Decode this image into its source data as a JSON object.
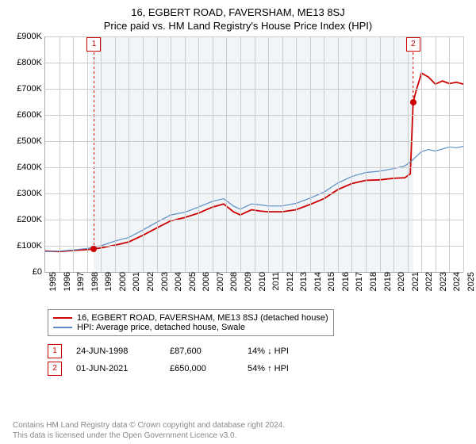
{
  "title_line1": "16, EGBERT ROAD, FAVERSHAM, ME13 8SJ",
  "title_line2": "Price paid vs. HM Land Registry's House Price Index (HPI)",
  "chart": {
    "type": "line",
    "x_start_year": 1995,
    "x_end_year": 2025,
    "ylim": [
      0,
      900000
    ],
    "ytick_step": 100000,
    "y_labels": [
      "£0",
      "£100K",
      "£200K",
      "£300K",
      "£400K",
      "£500K",
      "£600K",
      "£700K",
      "£800K",
      "£900K"
    ],
    "x_labels": [
      "1995",
      "1996",
      "1997",
      "1998",
      "1999",
      "2000",
      "2001",
      "2002",
      "2003",
      "2004",
      "2005",
      "2006",
      "2007",
      "2008",
      "2009",
      "2010",
      "2011",
      "2012",
      "2013",
      "2014",
      "2015",
      "2016",
      "2017",
      "2018",
      "2019",
      "2020",
      "2021",
      "2022",
      "2023",
      "2024",
      "2025"
    ],
    "band_start_year": 1998.5,
    "band_end_year": 2021.4,
    "background_color": "#ffffff",
    "band_color": "#f2f5f7",
    "grid_color": "#cccccc",
    "axis_fontsize": 11,
    "title_fontsize": 13,
    "series": [
      {
        "name": "red",
        "color": "#cc0000",
        "width": 1.8,
        "data": [
          [
            1995,
            80
          ],
          [
            1996,
            78
          ],
          [
            1997,
            82
          ],
          [
            1998,
            85
          ],
          [
            1998.5,
            88
          ],
          [
            1999,
            92
          ],
          [
            2000,
            102
          ],
          [
            2001,
            115
          ],
          [
            2002,
            140
          ],
          [
            2003,
            168
          ],
          [
            2004,
            195
          ],
          [
            2005,
            208
          ],
          [
            2006,
            225
          ],
          [
            2007,
            248
          ],
          [
            2007.8,
            260
          ],
          [
            2008.5,
            230
          ],
          [
            2009,
            218
          ],
          [
            2009.8,
            238
          ],
          [
            2010.5,
            232
          ],
          [
            2011,
            230
          ],
          [
            2012,
            230
          ],
          [
            2013,
            238
          ],
          [
            2014,
            258
          ],
          [
            2015,
            280
          ],
          [
            2016,
            315
          ],
          [
            2017,
            338
          ],
          [
            2018,
            350
          ],
          [
            2019,
            352
          ],
          [
            2020,
            358
          ],
          [
            2020.8,
            360
          ],
          [
            2021.2,
            375
          ],
          [
            2021.4,
            650
          ],
          [
            2021.6,
            690
          ],
          [
            2022,
            760
          ],
          [
            2022.5,
            745
          ],
          [
            2023,
            718
          ],
          [
            2023.5,
            730
          ],
          [
            2024,
            720
          ],
          [
            2024.5,
            725
          ],
          [
            2025,
            718
          ]
        ]
      },
      {
        "name": "blue",
        "color": "#5a8fc8",
        "width": 1.2,
        "data": [
          [
            1995,
            78
          ],
          [
            1996,
            80
          ],
          [
            1997,
            84
          ],
          [
            1998,
            90
          ],
          [
            1999,
            100
          ],
          [
            2000,
            118
          ],
          [
            2001,
            132
          ],
          [
            2002,
            160
          ],
          [
            2003,
            190
          ],
          [
            2004,
            218
          ],
          [
            2005,
            228
          ],
          [
            2006,
            248
          ],
          [
            2007,
            270
          ],
          [
            2007.8,
            280
          ],
          [
            2008.5,
            252
          ],
          [
            2009,
            240
          ],
          [
            2009.8,
            260
          ],
          [
            2010.5,
            256
          ],
          [
            2011,
            252
          ],
          [
            2012,
            252
          ],
          [
            2013,
            262
          ],
          [
            2014,
            282
          ],
          [
            2015,
            305
          ],
          [
            2016,
            340
          ],
          [
            2017,
            365
          ],
          [
            2018,
            380
          ],
          [
            2019,
            385
          ],
          [
            2020,
            395
          ],
          [
            2020.8,
            405
          ],
          [
            2021.2,
            420
          ],
          [
            2021.4,
            430
          ],
          [
            2022,
            460
          ],
          [
            2022.5,
            468
          ],
          [
            2023,
            462
          ],
          [
            2023.5,
            470
          ],
          [
            2024,
            478
          ],
          [
            2024.5,
            475
          ],
          [
            2025,
            480
          ]
        ]
      }
    ],
    "markers": [
      {
        "n": "1",
        "x": 1998.5,
        "y": 88,
        "top_line_y": 818
      },
      {
        "n": "2",
        "x": 2021.4,
        "y": 650,
        "top_line_y": 818
      }
    ]
  },
  "legend": {
    "red_label": "16, EGBERT ROAD, FAVERSHAM, ME13 8SJ (detached house)",
    "blue_label": "HPI: Average price, detached house, Swale",
    "red_color": "#cc0000",
    "blue_color": "#5a8fc8"
  },
  "events": [
    {
      "n": "1",
      "date": "24-JUN-1998",
      "price": "£87,600",
      "pct": "14% ↓ HPI"
    },
    {
      "n": "2",
      "date": "01-JUN-2021",
      "price": "£650,000",
      "pct": "54% ↑ HPI"
    }
  ],
  "footer_line1": "Contains HM Land Registry data © Crown copyright and database right 2024.",
  "footer_line2": "This data is licensed under the Open Government Licence v3.0."
}
